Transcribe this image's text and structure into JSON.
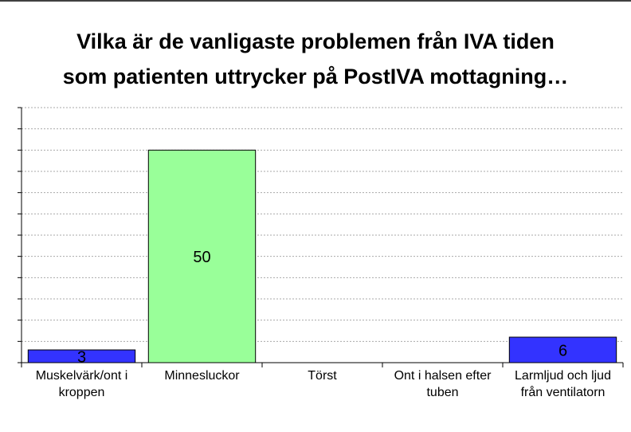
{
  "chart_data": {
    "type": "bar",
    "title": [
      "Vilka är de vanligaste problemen från IVA tiden",
      "som patienten uttrycker på PostIVA mottagning…"
    ],
    "categories": [
      "Muskelvärk/ont i kroppen",
      "Minnesluckor",
      "Törst",
      "Ont i halsen efter tuben",
      "Larmljud och ljud från ventilatorn"
    ],
    "values": [
      3,
      50,
      null,
      null,
      6
    ],
    "colors": [
      "#3333ff",
      "#99ff99",
      "#3333ff",
      "#3333ff",
      "#3333ff"
    ],
    "ylim": [
      0,
      60
    ],
    "yticks": [
      0,
      5,
      10,
      15,
      20,
      25,
      30,
      35,
      40,
      45,
      50,
      55,
      60
    ],
    "grid": true
  }
}
